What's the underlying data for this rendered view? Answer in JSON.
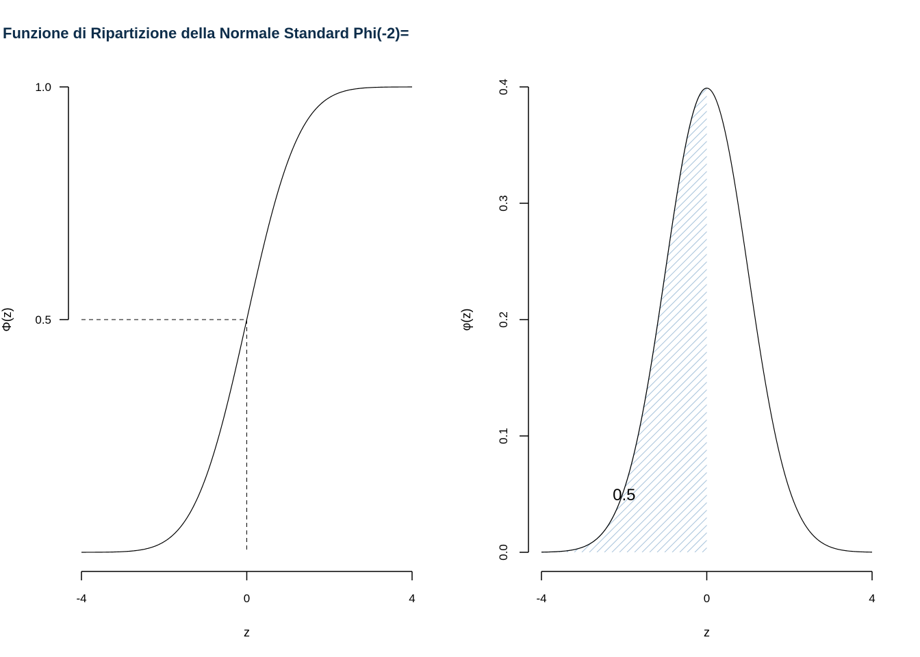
{
  "title": "Funzione di Ripartizione della Normale Standard Phi(-2)=",
  "colors": {
    "title": "#0d2d4a",
    "hatch": "#a9c4dc",
    "hatch_edge": "#7f9fb3"
  },
  "chart_data": [
    {
      "type": "line",
      "function": "standard normal CDF",
      "xlabel": "z",
      "ylabel": "Φ(z)",
      "xlim": [
        -4,
        4
      ],
      "ylim": [
        0,
        1
      ],
      "xticks": [
        "-4",
        "0",
        "4"
      ],
      "yticks": [
        "0.5",
        "1.0"
      ],
      "x": [
        -4,
        -3,
        -2,
        -1.5,
        -1,
        -0.5,
        0,
        0.5,
        1,
        1.5,
        2,
        3,
        4
      ],
      "y": [
        3e-05,
        0.00135,
        0.02275,
        0.0668,
        0.1587,
        0.3085,
        0.5,
        0.6915,
        0.8413,
        0.9332,
        0.97725,
        0.99865,
        0.99997
      ],
      "reference_point": {
        "x": 0,
        "y": 0.5,
        "style": "dashed"
      },
      "grid": false
    },
    {
      "type": "area",
      "function": "standard normal density",
      "xlabel": "z",
      "ylabel": "φ(z)",
      "xlim": [
        -4,
        4
      ],
      "ylim": [
        0,
        0.4
      ],
      "xticks": [
        "-4",
        "0",
        "4"
      ],
      "yticks": [
        "0.0",
        "0.1",
        "0.2",
        "0.3",
        "0.4"
      ],
      "x": [
        -4,
        -3,
        -2,
        -1.5,
        -1,
        -0.5,
        0,
        0.5,
        1,
        1.5,
        2,
        3,
        4
      ],
      "y": [
        0.00013,
        0.0044,
        0.054,
        0.1295,
        0.242,
        0.352,
        0.3989,
        0.352,
        0.242,
        0.1295,
        0.054,
        0.0044,
        0.00013
      ],
      "shaded_interval": [
        -4,
        0
      ],
      "shade_style": "hatched",
      "annotation": {
        "text": "0.5",
        "x": -2.0,
        "y": 0.05
      },
      "grid": false
    }
  ]
}
